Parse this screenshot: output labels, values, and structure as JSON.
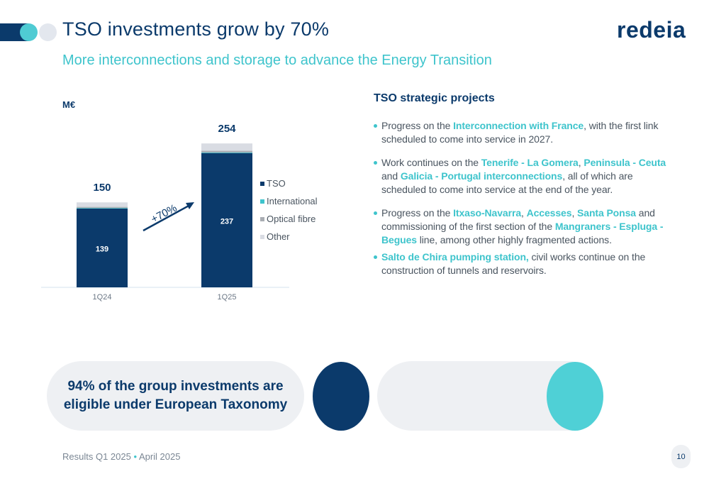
{
  "header": {
    "title": "TSO investments grow by 70%",
    "subtitle": "More interconnections and storage to advance the Energy Transition",
    "logo": "redeia"
  },
  "chart_data": {
    "type": "bar",
    "unit_label": "M€",
    "categories": [
      "1Q24",
      "1Q25"
    ],
    "stacked": true,
    "series": [
      {
        "name": "TSO",
        "values": [
          139,
          237
        ],
        "color": "#0b3a6b"
      },
      {
        "name": "International",
        "values": [
          1,
          1
        ],
        "color": "#3ec4cc"
      },
      {
        "name": "Optical fibre",
        "values": [
          2,
          3
        ],
        "color": "#a9adb3"
      },
      {
        "name": "Other",
        "values": [
          8,
          13
        ],
        "color": "#d9dce3"
      }
    ],
    "totals": [
      150,
      254
    ],
    "segment_labels": [
      "139",
      "237"
    ],
    "total_labels": [
      "150",
      "254"
    ],
    "annotation": "+70%",
    "legend_position": "right",
    "ylim": [
      0,
      270
    ]
  },
  "projects": {
    "title": "TSO strategic projects",
    "items": [
      [
        "Progress on the ",
        {
          "hl": "Interconnection with France"
        },
        ", with the first link scheduled to come into service in 2027."
      ],
      [
        "Work continues on the ",
        {
          "hl": "Tenerife - La Gomera"
        },
        ", ",
        {
          "hl": "Peninsula - Ceuta"
        },
        " and ",
        {
          "hl": "Galicia - Portugal interconnections"
        },
        ", all of which are scheduled to come into service at the end of the year."
      ],
      [
        "Progress on the ",
        {
          "hl": "Itxaso-Navarra"
        },
        ", ",
        {
          "hl": "Accesses"
        },
        ", ",
        {
          "hl": "Santa Ponsa"
        },
        " and commissioning of the first section of the ",
        {
          "hl": "Mangraners - Espluga - Begues"
        },
        " line, among other highly fragmented actions."
      ],
      [
        {
          "hl": "Salto de Chira pumping station,"
        },
        " civil works continue on the construction of tunnels and reservoirs."
      ]
    ]
  },
  "highlight": {
    "text": "94% of the group investments are eligible under European Taxonomy"
  },
  "footer": {
    "text": "Results Q1 2025",
    "separator": "•",
    "date": "April 2025",
    "page": "10"
  }
}
